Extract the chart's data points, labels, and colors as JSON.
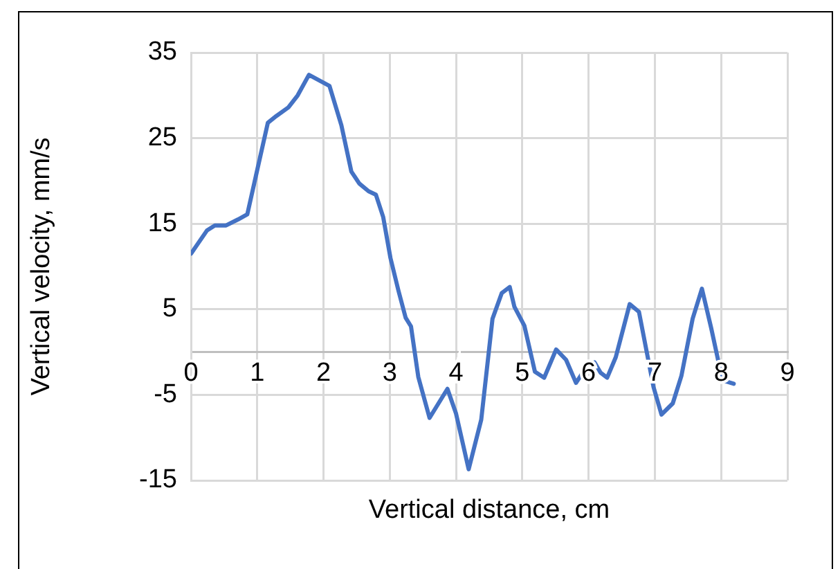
{
  "chart_data": {
    "type": "line",
    "xlabel": "Vertical distance, cm",
    "ylabel": "Vertical velocity, mm/s",
    "x": [
      0,
      0.24,
      0.36,
      0.53,
      0.71,
      0.85,
      0.98,
      1.16,
      1.29,
      1.47,
      1.61,
      1.78,
      2.09,
      2.27,
      2.42,
      2.54,
      2.68,
      2.79,
      2.9,
      3.01,
      3.13,
      3.24,
      3.32,
      3.43,
      3.6,
      3.87,
      4.0,
      4.19,
      4.38,
      4.55,
      4.69,
      4.81,
      4.88,
      5.03,
      5.19,
      5.33,
      5.51,
      5.66,
      5.81,
      5.97,
      6.09,
      6.18,
      6.28,
      6.41,
      6.62,
      6.76,
      6.98,
      7.1,
      7.27,
      7.4,
      7.57,
      7.71,
      7.85,
      8.02,
      8.19
    ],
    "series": [
      {
        "color": "#4472c4",
        "values": [
          11.5,
          14.2,
          14.8,
          14.8,
          15.5,
          16.1,
          20.6,
          26.8,
          27.6,
          28.6,
          30.0,
          32.4,
          31.1,
          26.5,
          21.1,
          19.7,
          18.8,
          18.4,
          15.8,
          11.0,
          7.2,
          4.0,
          3.0,
          -2.9,
          -7.7,
          -4.3,
          -7.2,
          -13.7,
          -7.9,
          3.9,
          6.9,
          7.6,
          5.3,
          3.1,
          -2.3,
          -3.0,
          0.3,
          -0.9,
          -3.6,
          -1.7,
          -1.2,
          -2.4,
          -3.0,
          -0.6,
          5.6,
          4.7,
          -4.1,
          -7.3,
          -6.0,
          -2.8,
          3.9,
          7.4,
          2.8,
          -3.3,
          -3.7
        ]
      }
    ],
    "xlim": [
      0,
      9
    ],
    "xticks": [
      0,
      1,
      2,
      3,
      4,
      5,
      6,
      7,
      8,
      9
    ],
    "ylim": [
      -15,
      35
    ],
    "yticks": [
      -15,
      -5,
      5,
      15,
      25,
      35
    ],
    "grid": true,
    "legend": false,
    "marker": "none",
    "line_style": "solid"
  }
}
